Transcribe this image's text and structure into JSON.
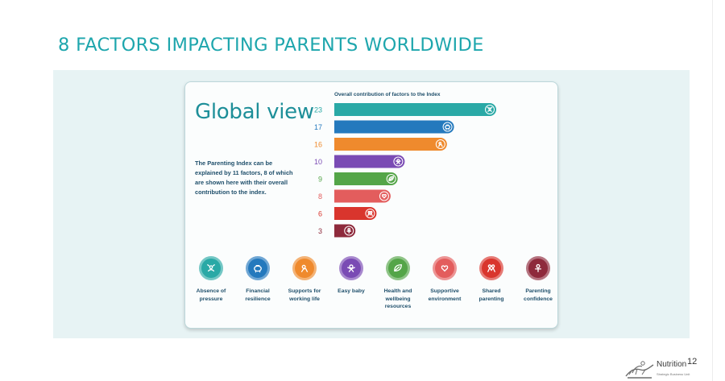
{
  "slide": {
    "title": "8 FACTORS IMPACTING PARENTS WORLDWIDE",
    "page_number": "12"
  },
  "card": {
    "heading": "Global view",
    "description": "The Parenting Index can be explained by 11 factors, 8 of which are shown here with their overall contribution to the index."
  },
  "chart_data": {
    "type": "bar",
    "orientation": "horizontal",
    "title": "Overall contribution of factors to the Index",
    "categories": [
      "Absence of pressure",
      "Financial resilience",
      "Supports for working life",
      "Easy baby",
      "Health and wellbeing resources",
      "Supportive environment",
      "Shared parenting",
      "Parenting confidence"
    ],
    "values": [
      23,
      17,
      16,
      10,
      9,
      8,
      6,
      3
    ],
    "colors": [
      "#2aa9a6",
      "#2479bd",
      "#ef8a2d",
      "#7a4bb4",
      "#54a548",
      "#e35d5d",
      "#d9352d",
      "#8e2a3c"
    ],
    "icons": [
      "no-pressure-icon",
      "piggy-bank-icon",
      "baby-care-icon",
      "happy-baby-icon",
      "leaf-icon",
      "heart-hands-icon",
      "parents-icon",
      "confidence-icon"
    ],
    "xlim": [
      0,
      23
    ]
  },
  "factors": [
    {
      "label": "Absence of pressure",
      "icon": "no-pressure-icon",
      "color": "#2aa9a6"
    },
    {
      "label": "Financial resilience",
      "icon": "piggy-bank-icon",
      "color": "#2479bd"
    },
    {
      "label": "Supports for working life",
      "icon": "baby-care-icon",
      "color": "#ef8a2d"
    },
    {
      "label": "Easy baby",
      "icon": "happy-baby-icon",
      "color": "#7a4bb4"
    },
    {
      "label": "Health and wellbeing resources",
      "icon": "leaf-icon",
      "color": "#54a548"
    },
    {
      "label": "Supportive environment",
      "icon": "heart-hands-icon",
      "color": "#e35d5d"
    },
    {
      "label": "Shared parenting",
      "icon": "parents-icon",
      "color": "#d9352d"
    },
    {
      "label": "Parenting confidence",
      "icon": "confidence-icon",
      "color": "#8e2a3c"
    }
  ],
  "brand": {
    "name": "Nutrition",
    "subtitle": "Strategic Business Unit"
  }
}
